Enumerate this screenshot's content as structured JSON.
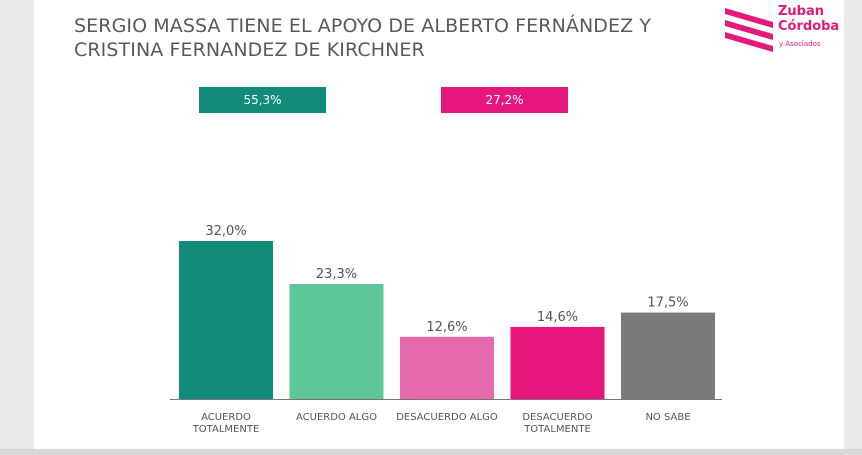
{
  "title_line1": "SERGIO MASSA TIENE EL APOYO DE ALBERTO FERNÁNDEZ Y",
  "title_line2": "CRISTINA FERNANDEZ DE KIRCHNER",
  "logo": {
    "line1": "Zuban",
    "line2": "Córdoba",
    "line3": "y Asociados",
    "color": "#e5197b"
  },
  "summary": [
    {
      "label": "55,3%",
      "color": "#128b78"
    },
    {
      "label": "27,2%",
      "color": "#e5177c"
    }
  ],
  "chart_data": {
    "type": "bar",
    "title": "SERGIO MASSA TIENE EL APOYO DE ALBERTO FERNÁNDEZ Y CRISTINA FERNANDEZ DE KIRCHNER",
    "categories": [
      [
        "ACUERDO",
        "TOTALMENTE"
      ],
      [
        "ACUERDO ALGO"
      ],
      [
        "DESACUERDO ALGO"
      ],
      [
        "DESACUERDO",
        "TOTALMENTE"
      ],
      [
        "NO SABE"
      ]
    ],
    "values": [
      32.0,
      23.3,
      12.6,
      14.6,
      17.5
    ],
    "value_labels": [
      "32,0%",
      "23,3%",
      "12,6%",
      "14,6%",
      "17,5%"
    ],
    "colors": [
      "#128b78",
      "#5dc79a",
      "#e569ab",
      "#e5177c",
      "#7a7a7a"
    ],
    "ylim": [
      0,
      32.0
    ],
    "grid": false,
    "legend": "none"
  }
}
